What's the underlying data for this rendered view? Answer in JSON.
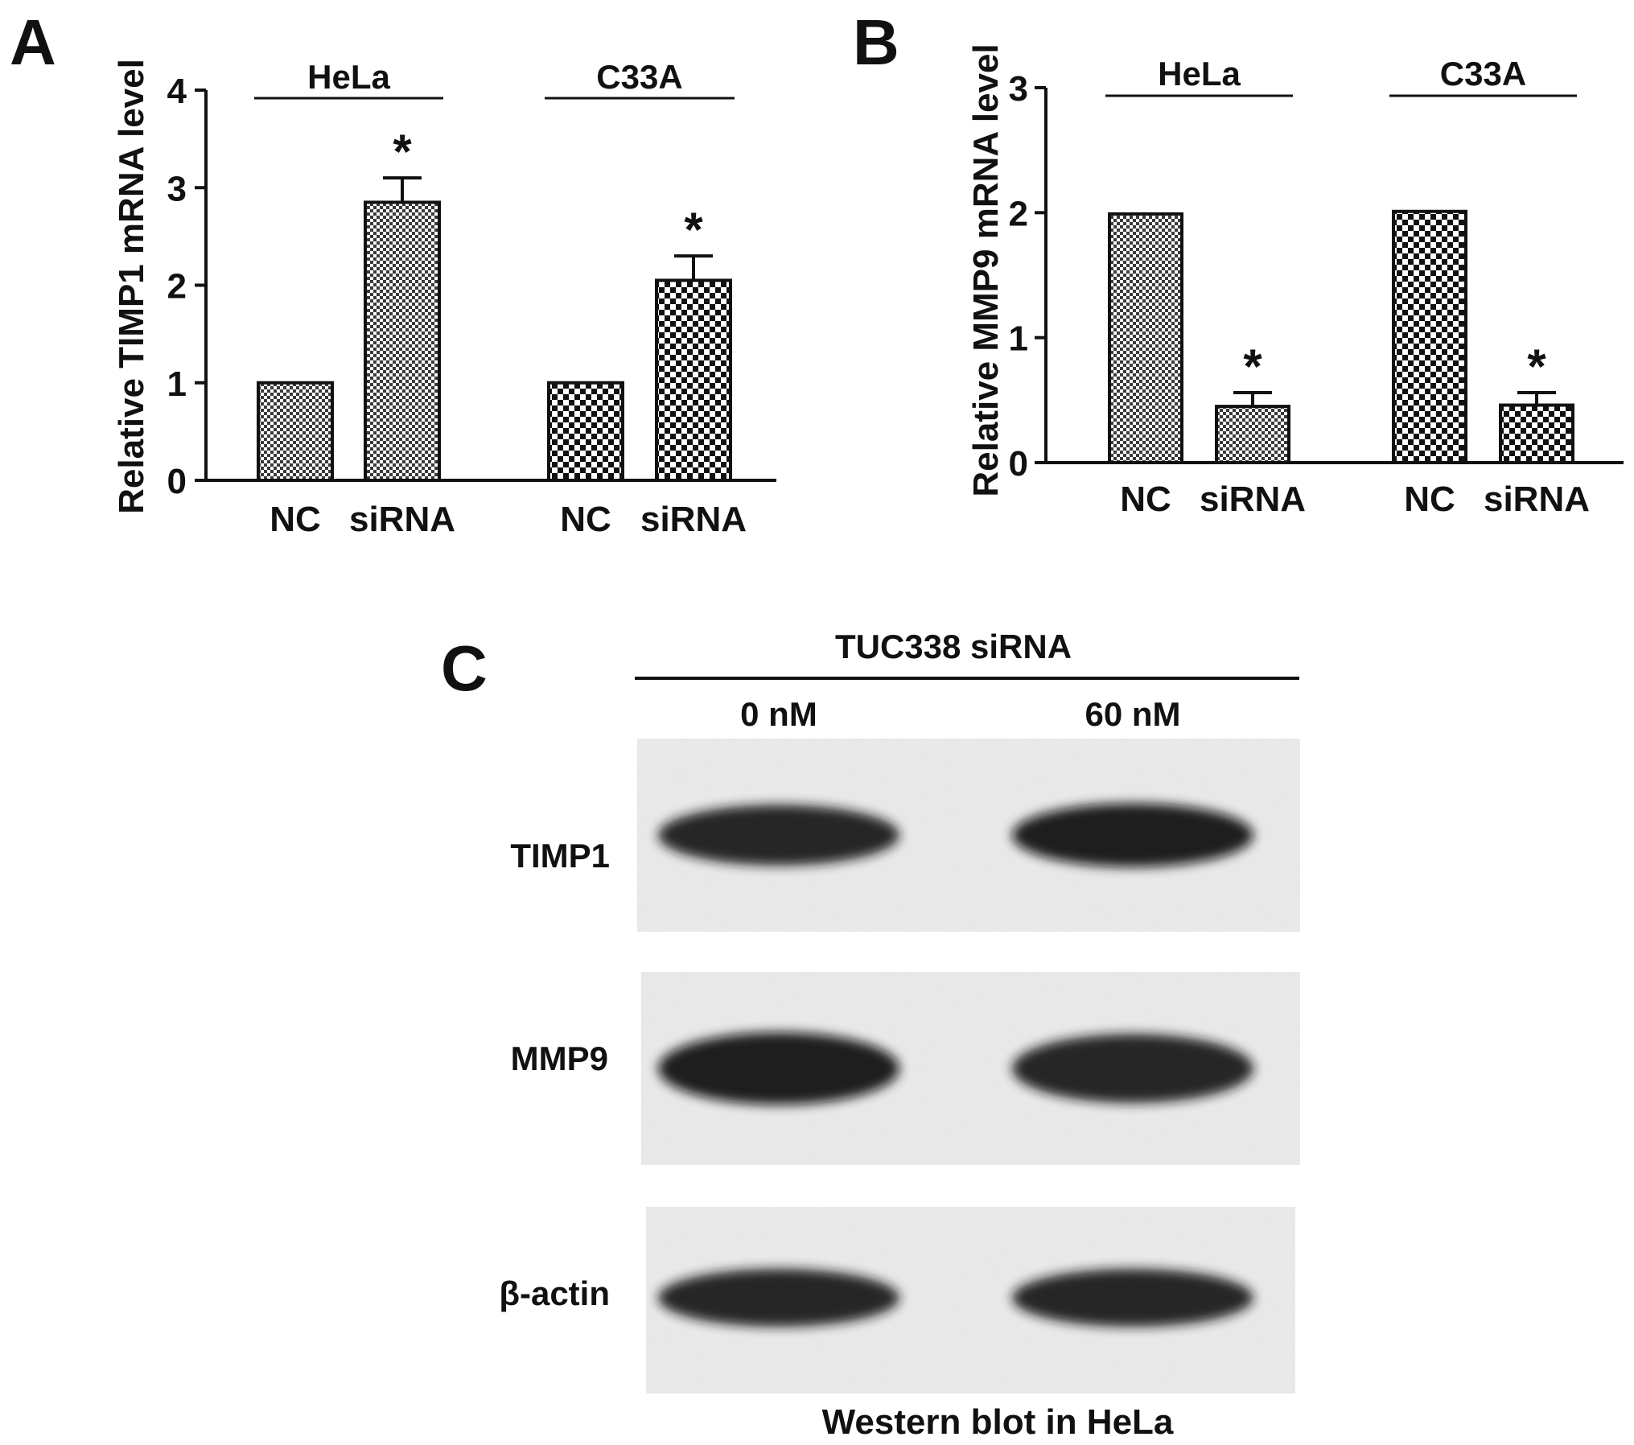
{
  "panels": {
    "a": {
      "letter": "A"
    },
    "b": {
      "letter": "B"
    },
    "c": {
      "letter": "C"
    }
  },
  "chart_data": [
    {
      "type": "bar",
      "panel": "A",
      "ylabel": "Relative TIMP1 mRNA level",
      "ylim": [
        0,
        4
      ],
      "yticks": [
        0,
        1,
        2,
        3,
        4
      ],
      "groups": [
        {
          "label": "HeLa",
          "pattern": "fine-check",
          "bars": [
            {
              "category": "NC",
              "value": 1.0,
              "error": 0.0,
              "star": ""
            },
            {
              "category": "siRNA",
              "value": 2.85,
              "error": 0.25,
              "star": "*"
            }
          ]
        },
        {
          "label": "C33A",
          "pattern": "coarse-check",
          "bars": [
            {
              "category": "NC",
              "value": 1.0,
              "error": 0.0,
              "star": ""
            },
            {
              "category": "siRNA",
              "value": 2.05,
              "error": 0.25,
              "star": "*"
            }
          ]
        }
      ]
    },
    {
      "type": "bar",
      "panel": "B",
      "ylabel": "Relative MMP9 mRNA level",
      "ylim": [
        0,
        3
      ],
      "yticks": [
        0,
        1,
        2,
        3
      ],
      "groups": [
        {
          "label": "HeLa",
          "pattern": "fine-check",
          "bars": [
            {
              "category": "NC",
              "value": 1.99,
              "error": 0.0,
              "star": ""
            },
            {
              "category": "siRNA",
              "value": 0.45,
              "error": 0.11,
              "star": "*"
            }
          ]
        },
        {
          "label": "C33A",
          "pattern": "coarse-check",
          "bars": [
            {
              "category": "NC",
              "value": 2.01,
              "error": 0.0,
              "star": ""
            },
            {
              "category": "siRNA",
              "value": 0.46,
              "error": 0.1,
              "star": "*"
            }
          ]
        }
      ]
    }
  ],
  "blot": {
    "treatment_header": "TUC338 siRNA",
    "lanes": [
      "0 nM",
      "60 nM"
    ],
    "rows": [
      {
        "label": "TIMP1",
        "intensity": [
          0.85,
          1.0
        ]
      },
      {
        "label": "MMP9",
        "intensity": [
          1.0,
          0.85
        ]
      },
      {
        "label": "β-actin",
        "intensity": [
          0.8,
          0.8
        ]
      }
    ],
    "caption": "Western blot in HeLa"
  }
}
